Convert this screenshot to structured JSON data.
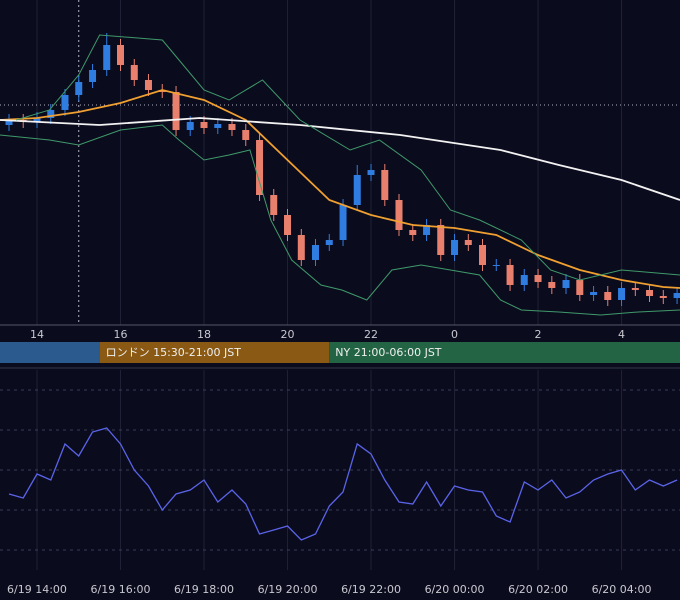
{
  "chart_data": [
    {
      "type": "candlestick",
      "x": [
        13.33,
        13.67,
        14,
        14.33,
        14.67,
        15,
        15.33,
        15.67,
        16,
        16.33,
        16.67,
        17,
        17.33,
        17.67,
        18,
        18.33,
        18.67,
        19,
        19.33,
        19.67,
        20,
        20.33,
        20.67,
        21,
        21.33,
        21.67,
        22,
        22.33,
        22.67,
        23,
        23.33,
        23.67,
        24,
        24.33,
        24.67,
        25,
        25.33,
        25.67,
        26,
        26.33,
        26.67,
        27,
        27.33,
        27.67,
        28,
        28.33,
        28.67,
        29,
        29.33
      ],
      "open": [
        200,
        205,
        203,
        207,
        215,
        230,
        243,
        255,
        280,
        260,
        245,
        235,
        233,
        195,
        203,
        197,
        201,
        195,
        185,
        130,
        110,
        90,
        65,
        80,
        85,
        120,
        150,
        155,
        125,
        95,
        90,
        100,
        70,
        85,
        80,
        60,
        60,
        40,
        50,
        43,
        37,
        45,
        30,
        33,
        25,
        37,
        35,
        29,
        27
      ],
      "high": [
        211,
        211,
        213,
        221,
        236,
        249,
        261,
        292,
        286,
        266,
        251,
        241,
        239,
        209,
        209,
        207,
        207,
        201,
        191,
        136,
        116,
        96,
        86,
        91,
        126,
        160,
        161,
        161,
        131,
        101,
        106,
        106,
        91,
        91,
        86,
        66,
        66,
        56,
        56,
        49,
        51,
        51,
        39,
        39,
        43,
        43,
        41,
        35,
        38
      ],
      "low": [
        194,
        197,
        197,
        201,
        209,
        224,
        237,
        249,
        254,
        239,
        229,
        227,
        189,
        189,
        191,
        191,
        189,
        179,
        124,
        104,
        84,
        59,
        59,
        74,
        79,
        114,
        144,
        119,
        89,
        84,
        84,
        64,
        64,
        74,
        54,
        54,
        34,
        34,
        37,
        31,
        31,
        24,
        24,
        19,
        19,
        29,
        23,
        21,
        21
      ],
      "close": [
        205,
        203,
        207,
        215,
        230,
        243,
        255,
        280,
        260,
        245,
        235,
        233,
        195,
        203,
        197,
        201,
        195,
        185,
        130,
        110,
        90,
        65,
        80,
        85,
        120,
        150,
        155,
        125,
        95,
        90,
        100,
        70,
        85,
        80,
        60,
        60,
        40,
        50,
        43,
        37,
        45,
        30,
        33,
        25,
        37,
        35,
        29,
        27,
        32
      ],
      "up_color": "#2f7de1",
      "down_color": "#e9806e",
      "xlim": [
        13.114,
        29.4
      ],
      "ylim": [
        0,
        325
      ],
      "xticks": [
        14,
        16,
        18,
        20,
        22,
        {
          "value": 24,
          "label": "0"
        },
        {
          "value": 26,
          "label": "2"
        },
        {
          "value": 28,
          "label": "4"
        }
      ],
      "grid": true,
      "overlays": [
        {
          "color": "#f0a030",
          "x": [
            13.11,
            14,
            15,
            16,
            17,
            18,
            19,
            20,
            21,
            22,
            23,
            24,
            25,
            26,
            27,
            28,
            29,
            29.4
          ],
          "values": [
            205,
            207,
            213,
            222,
            235,
            225,
            205,
            165,
            125,
            110,
            100,
            97,
            90,
            70,
            55,
            45,
            38,
            37
          ]
        },
        {
          "color": "#f2f2f2",
          "x": [
            13.11,
            15.5,
            17.9,
            20.3,
            22.7,
            25.1,
            26.5,
            28,
            29.4
          ],
          "values": [
            205,
            200,
            207,
            200,
            190,
            175,
            160,
            145,
            125
          ]
        },
        {
          "color": "#3f9a6a",
          "x": [
            13.5,
            14.3,
            15,
            15.5,
            17,
            17.4,
            18,
            18.6,
            19.4,
            20.3,
            21.5,
            22.2,
            23.2,
            23.9,
            24.6,
            25.6,
            26.3,
            27,
            28,
            29.4
          ],
          "values": [
            205,
            215,
            250,
            290,
            285,
            265,
            235,
            225,
            245,
            205,
            175,
            185,
            155,
            115,
            105,
            85,
            55,
            45,
            55,
            50
          ]
        },
        {
          "color": "#3f9a6a",
          "x": [
            13.1,
            14.3,
            15,
            16,
            17,
            17.4,
            18,
            18.6,
            19.1,
            19.6,
            20.1,
            20.8,
            21.3,
            21.9,
            22.5,
            23.2,
            23.9,
            24.6,
            25.1,
            25.6,
            26.5,
            27.5,
            28.4,
            29.4
          ],
          "values": [
            190,
            185,
            180,
            195,
            200,
            185,
            165,
            170,
            175,
            105,
            65,
            40,
            35,
            25,
            55,
            60,
            55,
            50,
            25,
            15,
            13,
            10,
            13,
            15
          ]
        }
      ],
      "reference_lines": {
        "y": 220,
        "x": 15
      },
      "sessions": [
        {
          "start": 13,
          "end": 15.5,
          "color": "#2b5a8e"
        },
        {
          "name": "ロンドン 15:30-21:00 JST",
          "start": 15.5,
          "end": 21,
          "color": "#8a5a14"
        },
        {
          "name": "NY 21:00-06:00 JST",
          "start": 21,
          "end": 30,
          "color": "#226443"
        }
      ]
    },
    {
      "type": "line",
      "x": [
        13.33,
        13.67,
        14,
        14.33,
        14.67,
        15,
        15.33,
        15.67,
        16,
        16.33,
        16.67,
        17,
        17.33,
        17.67,
        18,
        18.33,
        18.67,
        19,
        19.33,
        19.67,
        20,
        20.33,
        20.67,
        21,
        21.33,
        21.67,
        22,
        22.33,
        22.67,
        23,
        23.33,
        23.67,
        24,
        24.33,
        24.67,
        25,
        25.33,
        25.67,
        26,
        26.33,
        26.67,
        27,
        27.33,
        27.67,
        28,
        28.33,
        28.67,
        29,
        29.33
      ],
      "values": [
        38,
        36,
        48,
        45,
        63,
        57,
        69,
        71,
        63,
        50,
        42,
        30,
        38,
        40,
        45,
        34,
        40,
        33,
        18,
        20,
        22,
        15,
        18,
        32,
        39,
        63,
        58,
        45,
        34,
        33,
        44,
        32,
        42,
        40,
        39,
        27,
        24,
        44,
        40,
        45,
        36,
        39,
        45,
        48,
        50,
        40,
        45,
        42,
        45
      ],
      "color": "#5a64e8",
      "xlim": [
        13.114,
        29.4
      ],
      "ylim": [
        0,
        100
      ],
      "yticks": [
        10,
        30,
        50,
        70,
        90
      ],
      "xticks": [
        {
          "value": 14,
          "label": "6/19 14:00"
        },
        {
          "value": 16,
          "label": "6/19 16:00"
        },
        {
          "value": 18,
          "label": "6/19 18:00"
        },
        {
          "value": 20,
          "label": "6/19 20:00"
        },
        {
          "value": 22,
          "label": "6/19 22:00"
        },
        {
          "value": 24,
          "label": "6/20 00:00"
        },
        {
          "value": 26,
          "label": "6/20 02:00"
        },
        {
          "value": 28,
          "label": "6/20 04:00"
        }
      ],
      "grid": true
    }
  ]
}
